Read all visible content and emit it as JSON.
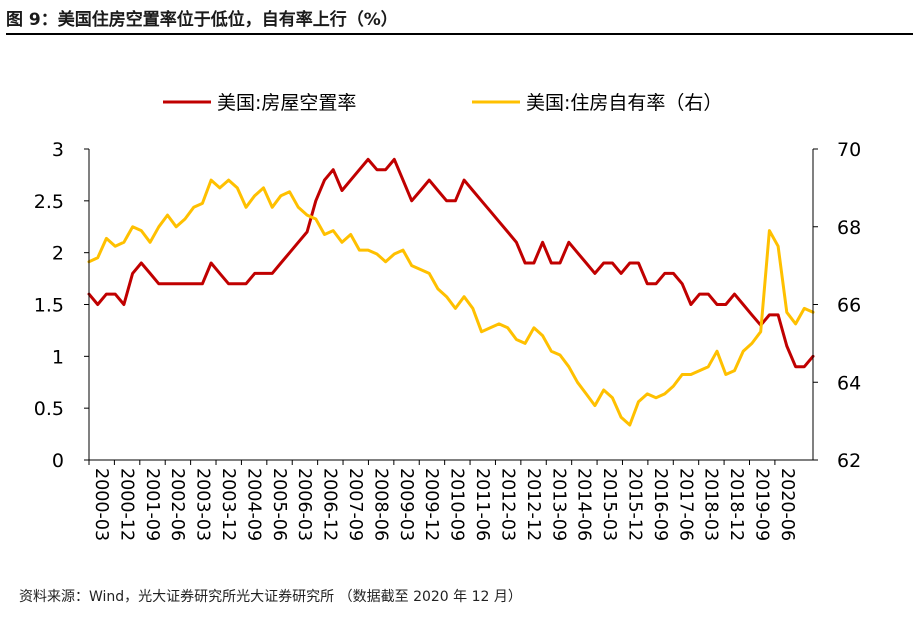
{
  "figure": {
    "title": "图 9：美国住房空置率位于低位，自有率上行（%）",
    "source": "资料来源：Wind，光大证券研究所光大证券研究所  （数据截至 2020 年 12 月）"
  },
  "chart_data": {
    "type": "line",
    "title": "图 9：美国住房空置率位于低位，自有率上行（%）",
    "x_ticks": [
      "2000-03",
      "2000-12",
      "2001-09",
      "2002-06",
      "2003-03",
      "2003-12",
      "2004-09",
      "2005-06",
      "2006-03",
      "2006-12",
      "2007-09",
      "2008-06",
      "2009-03",
      "2009-12",
      "2010-09",
      "2011-06",
      "2012-03",
      "2012-12",
      "2013-09",
      "2014-06",
      "2015-03",
      "2015-12",
      "2016-09",
      "2017-06",
      "2018-03",
      "2018-12",
      "2019-09",
      "2020-06"
    ],
    "x_range": [
      2000.0,
      2020.75
    ],
    "y_left": {
      "range": [
        0,
        3
      ],
      "ticks": [
        "0",
        "0.5",
        "1",
        "1.5",
        "2",
        "2.5",
        "3"
      ]
    },
    "y_right": {
      "range": [
        62,
        70
      ],
      "ticks": [
        "62",
        "64",
        "66",
        "68",
        "70"
      ]
    },
    "legend_position": "top",
    "series": [
      {
        "name": "美国:房屋空置率",
        "axis": "left",
        "color": "#c00000",
        "x": [
          2000.0,
          2000.25,
          2000.5,
          2000.75,
          2001.0,
          2001.25,
          2001.5,
          2001.75,
          2002.0,
          2002.25,
          2002.5,
          2002.75,
          2003.0,
          2003.25,
          2003.5,
          2003.75,
          2004.0,
          2004.25,
          2004.5,
          2004.75,
          2005.0,
          2005.25,
          2005.5,
          2005.75,
          2006.0,
          2006.25,
          2006.5,
          2006.75,
          2007.0,
          2007.25,
          2007.5,
          2007.75,
          2008.0,
          2008.25,
          2008.5,
          2008.75,
          2009.0,
          2009.25,
          2009.5,
          2009.75,
          2010.0,
          2010.25,
          2010.5,
          2010.75,
          2011.0,
          2011.25,
          2011.5,
          2011.75,
          2012.0,
          2012.25,
          2012.5,
          2012.75,
          2013.0,
          2013.25,
          2013.5,
          2013.75,
          2014.0,
          2014.25,
          2014.5,
          2014.75,
          2015.0,
          2015.25,
          2015.5,
          2015.75,
          2016.0,
          2016.25,
          2016.5,
          2016.75,
          2017.0,
          2017.25,
          2017.5,
          2017.75,
          2018.0,
          2018.25,
          2018.5,
          2018.75,
          2019.0,
          2019.25,
          2019.5,
          2019.75,
          2020.0,
          2020.25,
          2020.5,
          2020.75
        ],
        "values": [
          1.6,
          1.5,
          1.6,
          1.6,
          1.5,
          1.8,
          1.9,
          1.8,
          1.7,
          1.7,
          1.7,
          1.7,
          1.7,
          1.7,
          1.9,
          1.8,
          1.7,
          1.7,
          1.7,
          1.8,
          1.8,
          1.8,
          1.9,
          2.0,
          2.1,
          2.2,
          2.5,
          2.7,
          2.8,
          2.6,
          2.7,
          2.8,
          2.9,
          2.8,
          2.8,
          2.9,
          2.7,
          2.5,
          2.6,
          2.7,
          2.6,
          2.5,
          2.5,
          2.7,
          2.6,
          2.5,
          2.4,
          2.3,
          2.2,
          2.1,
          1.9,
          1.9,
          2.1,
          1.9,
          1.9,
          2.1,
          2.0,
          1.9,
          1.8,
          1.9,
          1.9,
          1.8,
          1.9,
          1.9,
          1.7,
          1.7,
          1.8,
          1.8,
          1.7,
          1.5,
          1.6,
          1.6,
          1.5,
          1.5,
          1.6,
          1.5,
          1.4,
          1.3,
          1.4,
          1.4,
          1.1,
          0.9,
          0.9,
          1.0
        ]
      },
      {
        "name": "美国:住房自有率（右）",
        "axis": "right",
        "color": "#ffc000",
        "x": [
          2000.0,
          2000.25,
          2000.5,
          2000.75,
          2001.0,
          2001.25,
          2001.5,
          2001.75,
          2002.0,
          2002.25,
          2002.5,
          2002.75,
          2003.0,
          2003.25,
          2003.5,
          2003.75,
          2004.0,
          2004.25,
          2004.5,
          2004.75,
          2005.0,
          2005.25,
          2005.5,
          2005.75,
          2006.0,
          2006.25,
          2006.5,
          2006.75,
          2007.0,
          2007.25,
          2007.5,
          2007.75,
          2008.0,
          2008.25,
          2008.5,
          2008.75,
          2009.0,
          2009.25,
          2009.5,
          2009.75,
          2010.0,
          2010.25,
          2010.5,
          2010.75,
          2011.0,
          2011.25,
          2011.5,
          2011.75,
          2012.0,
          2012.25,
          2012.5,
          2012.75,
          2013.0,
          2013.25,
          2013.5,
          2013.75,
          2014.0,
          2014.25,
          2014.5,
          2014.75,
          2015.0,
          2015.25,
          2015.5,
          2015.75,
          2016.0,
          2016.25,
          2016.5,
          2016.75,
          2017.0,
          2017.25,
          2017.5,
          2017.75,
          2018.0,
          2018.25,
          2018.5,
          2018.75,
          2019.0,
          2019.25,
          2019.5,
          2019.75,
          2020.0,
          2020.25,
          2020.5,
          2020.75
        ],
        "values": [
          67.1,
          67.2,
          67.7,
          67.5,
          67.6,
          68.0,
          67.9,
          67.6,
          68.0,
          68.3,
          68.0,
          68.2,
          68.5,
          68.6,
          69.2,
          69.0,
          69.2,
          69.0,
          68.5,
          68.8,
          69.0,
          68.5,
          68.8,
          68.9,
          68.5,
          68.3,
          68.2,
          67.8,
          67.9,
          67.6,
          67.8,
          67.4,
          67.4,
          67.3,
          67.1,
          67.3,
          67.4,
          67.0,
          66.9,
          66.8,
          66.4,
          66.2,
          65.9,
          66.2,
          65.9,
          65.3,
          65.4,
          65.5,
          65.4,
          65.1,
          65.0,
          65.4,
          65.2,
          64.8,
          64.7,
          64.4,
          64.0,
          63.7,
          63.4,
          63.8,
          63.6,
          63.1,
          62.9,
          63.5,
          63.7,
          63.6,
          63.7,
          63.9,
          64.2,
          64.2,
          64.3,
          64.4,
          64.8,
          64.2,
          64.3,
          64.8,
          65.0,
          65.3,
          67.9,
          67.5,
          65.8,
          65.5,
          65.9,
          65.8
        ]
      }
    ]
  }
}
